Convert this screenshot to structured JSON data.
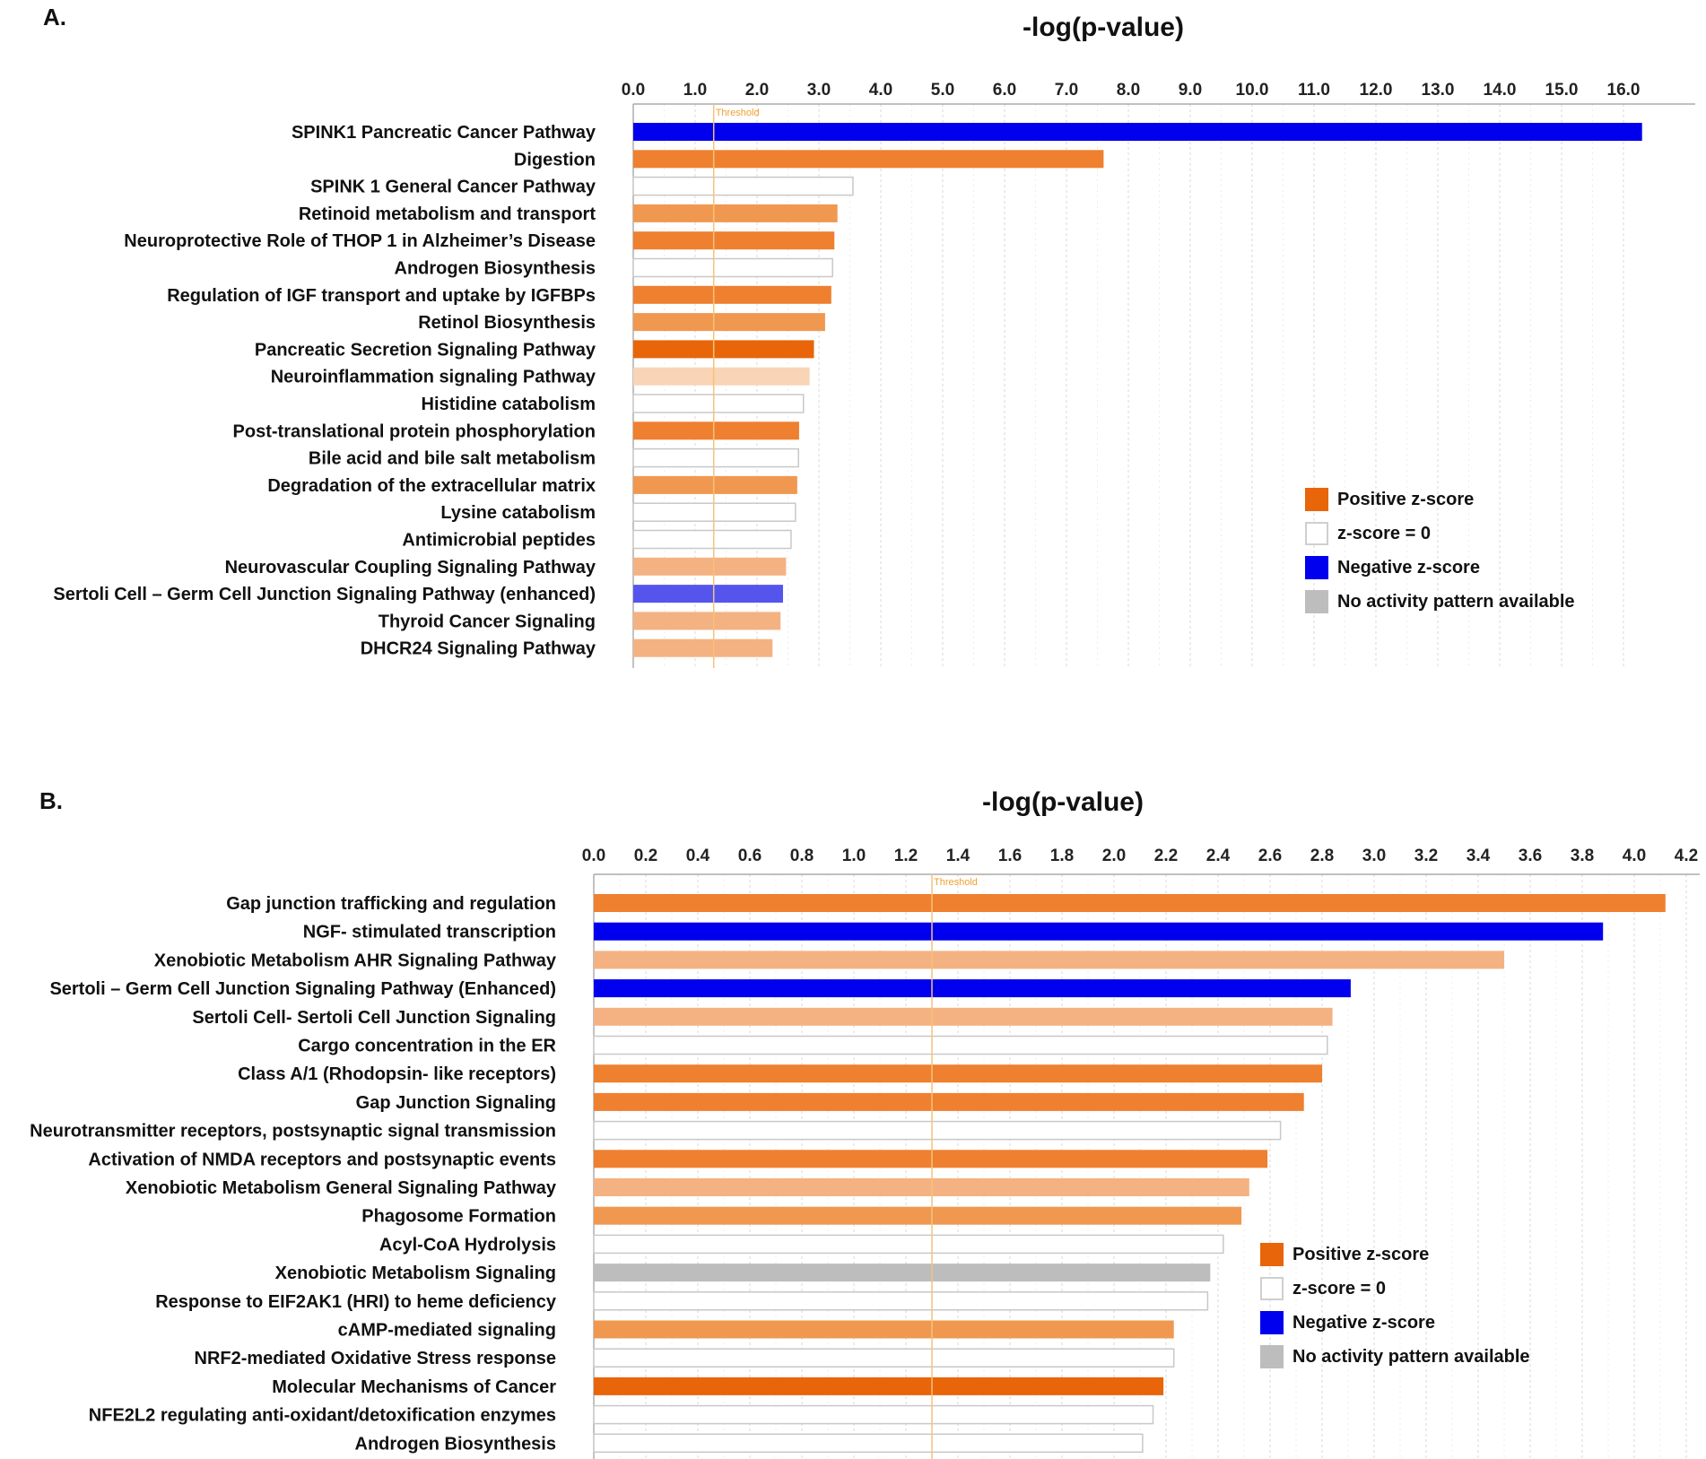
{
  "colors": {
    "orange_strong": "#e8650a",
    "orange": "#ee8030",
    "orange_medium": "#f09850",
    "orange_light": "#f4b283",
    "orange_pale": "#f9d4b6",
    "blue": "#0000ee",
    "blue_medium": "#5555ee",
    "none": "#ffffff",
    "gray": "#bdbdbd",
    "threshold": "#f5c27a"
  },
  "legend": [
    {
      "label": "Positive z-score",
      "color": "#e8650a"
    },
    {
      "label": "z-score = 0",
      "color": "#ffffff"
    },
    {
      "label": "Negative z-score",
      "color": "#0000ee"
    },
    {
      "label": "No activity pattern available",
      "color": "#bdbdbd"
    }
  ],
  "chart_data": [
    {
      "type": "bar",
      "panel": "A.",
      "title": "-log(p-value)",
      "orientation": "horizontal",
      "threshold_label": "Threshold",
      "threshold": 1.3,
      "xlim": [
        0,
        16.7
      ],
      "ticks": [
        "0.0",
        "1.0",
        "2.0",
        "3.0",
        "4.0",
        "5.0",
        "6.0",
        "7.0",
        "8.0",
        "9.0",
        "10.0",
        "11.0",
        "12.0",
        "13.0",
        "14.0",
        "15.0",
        "16.0"
      ],
      "categories": [
        "SPINK1 Pancreatic Cancer Pathway",
        "Digestion",
        "SPINK 1 General Cancer Pathway",
        "Retinoid metabolism and transport",
        "Neuroprotective Role of THOP 1 in Alzheimer’s Disease",
        "Androgen Biosynthesis",
        "Regulation of IGF transport and uptake by IGFBPs",
        "Retinol Biosynthesis",
        "Pancreatic Secretion Signaling Pathway",
        "Neuroinflammation signaling Pathway",
        "Histidine catabolism",
        "Post-translational protein phosphorylation",
        "Bile acid and bile salt metabolism",
        "Degradation of the extracellular matrix",
        "Lysine catabolism",
        "Antimicrobial peptides",
        "Neurovascular Coupling Signaling Pathway",
        "Sertoli Cell – Germ Cell Junction Signaling Pathway (enhanced)",
        "Thyroid Cancer Signaling",
        "DHCR24 Signaling Pathway"
      ],
      "values": [
        16.3,
        7.6,
        3.55,
        3.3,
        3.25,
        3.22,
        3.2,
        3.1,
        2.92,
        2.85,
        2.75,
        2.68,
        2.67,
        2.65,
        2.62,
        2.55,
        2.47,
        2.42,
        2.38,
        2.25
      ],
      "colors": [
        "blue",
        "orange",
        "none",
        "orange_medium",
        "orange",
        "none",
        "orange",
        "orange_medium",
        "orange_strong",
        "orange_pale",
        "none",
        "orange",
        "none",
        "orange_medium",
        "none",
        "none",
        "orange_light",
        "blue_medium",
        "orange_light",
        "orange_light"
      ]
    },
    {
      "type": "bar",
      "panel": "B.",
      "title": "-log(p-value)",
      "orientation": "horizontal",
      "threshold_label": "Threshold",
      "threshold": 1.3,
      "xlim": [
        0,
        4.2
      ],
      "ticks": [
        "0.0",
        "0.2",
        "0.4",
        "0.6",
        "0.8",
        "1.0",
        "1.2",
        "1.4",
        "1.6",
        "1.8",
        "2.0",
        "2.2",
        "2.4",
        "2.6",
        "2.8",
        "3.0",
        "3.2",
        "3.4",
        "3.6",
        "3.8",
        "4.0",
        "4.2"
      ],
      "tick_values": [
        0.0,
        0.2,
        0.4,
        0.6,
        0.8,
        1.0,
        1.2,
        1.4,
        1.6,
        1.8,
        2.0,
        2.2,
        2.4,
        2.6,
        2.8,
        3.0,
        3.2,
        3.4,
        3.6,
        3.8,
        4.0,
        4.2
      ],
      "categories": [
        "Gap junction trafficking and regulation",
        "NGF- stimulated transcription",
        "Xenobiotic Metabolism AHR Signaling Pathway",
        "Sertoli – Germ Cell Junction Signaling Pathway (Enhanced)",
        "Sertoli Cell- Sertoli Cell Junction Signaling",
        "Cargo concentration in the ER",
        "Class A/1 (Rhodopsin- like receptors)",
        "Gap Junction Signaling",
        "Neurotransmitter receptors, postsynaptic signal transmission",
        "Activation of NMDA receptors and postsynaptic events",
        "Xenobiotic Metabolism General Signaling Pathway",
        "Phagosome Formation",
        "Acyl-CoA Hydrolysis",
        "Xenobiotic Metabolism Signaling",
        "Response to EIF2AK1 (HRI) to heme deficiency",
        "cAMP-mediated signaling",
        "NRF2-mediated Oxidative Stress response",
        "Molecular Mechanisms of Cancer",
        "NFE2L2 regulating anti-oxidant/detoxification enzymes",
        "Androgen Biosynthesis"
      ],
      "values": [
        4.12,
        3.88,
        3.5,
        2.91,
        2.84,
        2.82,
        2.8,
        2.73,
        2.64,
        2.59,
        2.52,
        2.49,
        2.42,
        2.37,
        2.36,
        2.23,
        2.23,
        2.19,
        2.15,
        2.11
      ],
      "colors": [
        "orange",
        "blue",
        "orange_light",
        "blue",
        "orange_light",
        "none",
        "orange",
        "orange",
        "none",
        "orange",
        "orange_light",
        "orange_medium",
        "none",
        "gray",
        "none",
        "orange_medium",
        "none",
        "orange_strong",
        "none",
        "none"
      ]
    }
  ]
}
